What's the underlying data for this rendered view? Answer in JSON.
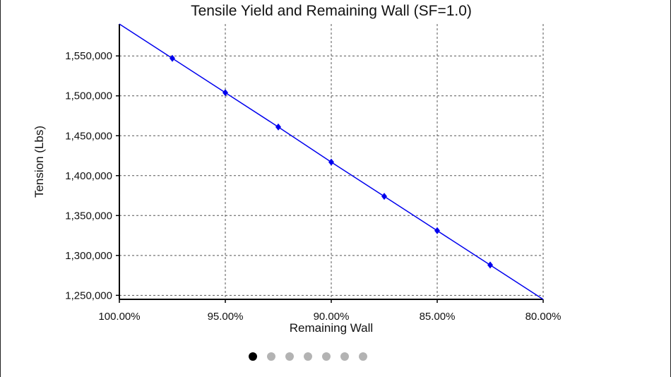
{
  "chart_data": {
    "type": "line",
    "title": "Tensile Yield and Remaining Wall (SF=1.0)",
    "xlabel": "Remaining Wall",
    "ylabel": "Tension (Lbs)",
    "x_reversed": true,
    "xlim": [
      100,
      80
    ],
    "ylim": [
      1245000,
      1590000
    ],
    "x_ticks": [
      100,
      95,
      90,
      85,
      80
    ],
    "x_tick_labels": [
      "100.00%",
      "95.00%",
      "90.00%",
      "85.00%",
      "80.00%"
    ],
    "y_ticks": [
      1250000,
      1300000,
      1350000,
      1400000,
      1450000,
      1500000,
      1550000
    ],
    "y_tick_labels": [
      "1,250,000",
      "1,300,000",
      "1,350,000",
      "1,400,000",
      "1,450,000",
      "1,500,000",
      "1,550,000"
    ],
    "grid": true,
    "series": [
      {
        "color": "#0000ee",
        "marker": "diamond",
        "x": [
          100,
          97.5,
          95,
          92.5,
          90,
          87.5,
          85,
          82.5,
          80
        ],
        "y": [
          1590000,
          1547000,
          1504000,
          1461000,
          1417000,
          1374000,
          1331000,
          1288000,
          1245000
        ],
        "markers_at": [
          97.5,
          95,
          92.5,
          90,
          87.5,
          85,
          82.5
        ]
      }
    ]
  },
  "pager": {
    "count": 7,
    "active_index": 0
  }
}
